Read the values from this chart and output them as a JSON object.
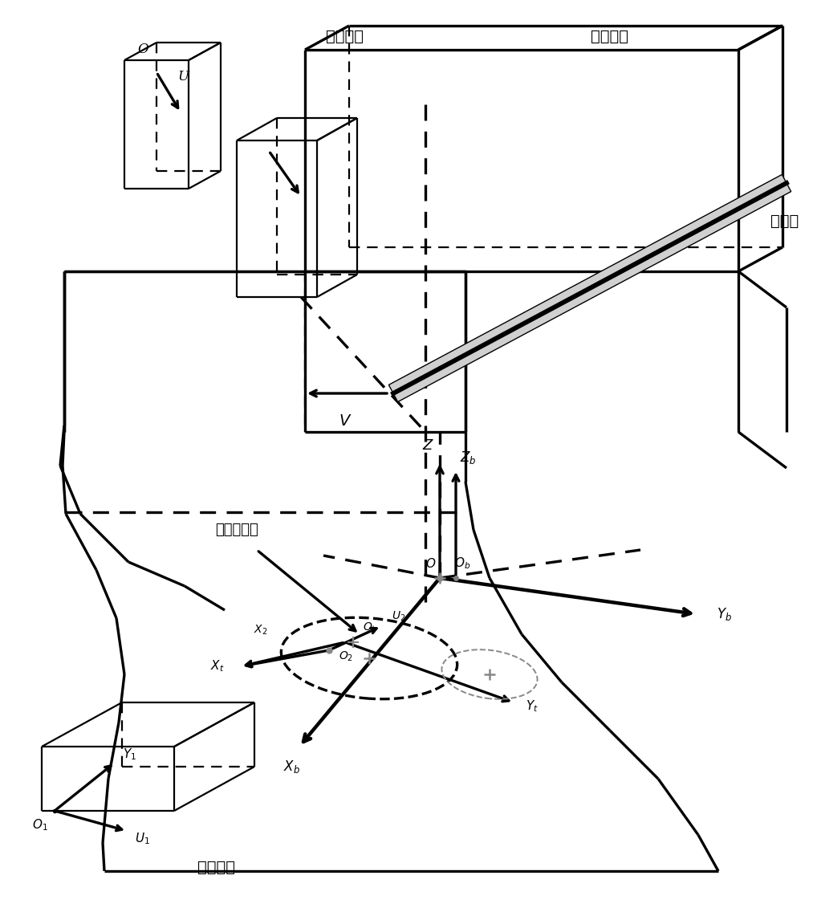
{
  "bg_color": "#ffffff",
  "figsize": [
    10.18,
    11.46
  ],
  "dpi": 100,
  "labels": {
    "camera_measure": "测量相机",
    "cylinder": "被测缸体",
    "grating": "光栅尺",
    "position_hole": "定位基准孔",
    "camera_position": "定位相机"
  },
  "lw": 1.6,
  "lw_bold": 2.4,
  "lw_thick": 3.2,
  "dash_pattern": [
    6,
    4
  ]
}
